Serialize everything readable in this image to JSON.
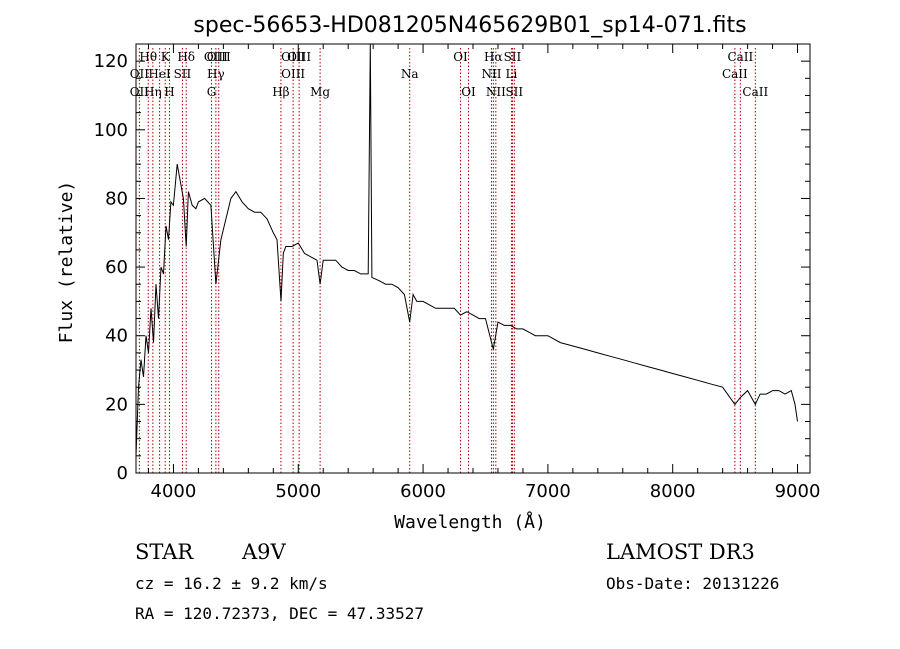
{
  "chart_data": {
    "type": "line",
    "title": "spec-56653-HD081205N465629B01_sp14-071.fits",
    "xlabel": "Wavelength (Å)",
    "ylabel": "Flux (relative)",
    "xlim": [
      3700,
      9100
    ],
    "ylim": [
      0,
      125
    ],
    "xticks": [
      4000,
      5000,
      6000,
      7000,
      8000,
      9000
    ],
    "yticks": [
      0,
      20,
      40,
      60,
      80,
      100,
      120
    ],
    "spectrum": {
      "x": [
        3700,
        3720,
        3740,
        3760,
        3780,
        3800,
        3820,
        3840,
        3860,
        3880,
        3900,
        3920,
        3940,
        3960,
        3980,
        4000,
        4030,
        4060,
        4080,
        4102,
        4120,
        4150,
        4180,
        4200,
        4250,
        4300,
        4340,
        4380,
        4420,
        4460,
        4500,
        4550,
        4600,
        4650,
        4700,
        4750,
        4800,
        4830,
        4862,
        4880,
        4900,
        4950,
        5000,
        5050,
        5100,
        5150,
        5175,
        5200,
        5250,
        5300,
        5350,
        5400,
        5450,
        5500,
        5560,
        5577,
        5590,
        5650,
        5700,
        5750,
        5800,
        5850,
        5893,
        5920,
        5950,
        6000,
        6050,
        6100,
        6150,
        6200,
        6250,
        6300,
        6350,
        6400,
        6450,
        6500,
        6563,
        6600,
        6650,
        6700,
        6750,
        6800,
        6850,
        6900,
        6950,
        7000,
        7100,
        7200,
        7300,
        7400,
        7500,
        7600,
        7700,
        7800,
        7900,
        8000,
        8100,
        8200,
        8300,
        8400,
        8498,
        8542,
        8600,
        8662,
        8700,
        8750,
        8800,
        8850,
        8900,
        8950,
        8980,
        9000
      ],
      "y": [
        5,
        25,
        33,
        28,
        40,
        35,
        48,
        38,
        55,
        45,
        60,
        58,
        72,
        68,
        79,
        78,
        90,
        84,
        80,
        66,
        82,
        78,
        77,
        79,
        80,
        78,
        55,
        68,
        74,
        80,
        82,
        79,
        77,
        76,
        76,
        74,
        70,
        68,
        50,
        64,
        66,
        66,
        67,
        64,
        63,
        62,
        55,
        62,
        62,
        62,
        60,
        59,
        59,
        58,
        58,
        125,
        57,
        56,
        55,
        55,
        54,
        52,
        44,
        52,
        50,
        50,
        49,
        48,
        48,
        48,
        48,
        46,
        47,
        46,
        45,
        45,
        36,
        44,
        43,
        43,
        42,
        42,
        41,
        40,
        40,
        40,
        38,
        37,
        36,
        35,
        34,
        33,
        32,
        31,
        30,
        29,
        28,
        27,
        26,
        25,
        20,
        22,
        24,
        20,
        23,
        23,
        24,
        24,
        23,
        24,
        20,
        15
      ]
    },
    "lines": [
      {
        "name": "OII",
        "wavelength": 3727,
        "row": 2
      },
      {
        "name": "OII",
        "wavelength": 3727,
        "row": 3
      },
      {
        "name": "Hθ",
        "wavelength": 3798,
        "row": 1
      },
      {
        "name": "Hη",
        "wavelength": 3835,
        "row": 3
      },
      {
        "name": "HeI",
        "wavelength": 3889,
        "row": 2
      },
      {
        "name": "K",
        "wavelength": 3934,
        "row": 1
      },
      {
        "name": "H",
        "wavelength": 3968,
        "row": 3
      },
      {
        "name": "SII",
        "wavelength": 4072,
        "row": 2
      },
      {
        "name": "Hδ",
        "wavelength": 4102,
        "row": 1
      },
      {
        "name": "G",
        "wavelength": 4305,
        "row": 3
      },
      {
        "name": "OIII",
        "wavelength": 4340,
        "row": 1
      },
      {
        "name": "Hγ",
        "wavelength": 4340,
        "row": 2
      },
      {
        "name": "OIII",
        "wavelength": 4363,
        "row": 1
      },
      {
        "name": "Hβ",
        "wavelength": 4861,
        "row": 3
      },
      {
        "name": "OIII",
        "wavelength": 4959,
        "row": 1
      },
      {
        "name": "OIII",
        "wavelength": 4959,
        "row": 2
      },
      {
        "name": "OIII",
        "wavelength": 5007,
        "row": 1
      },
      {
        "name": "Mg",
        "wavelength": 5175,
        "row": 3
      },
      {
        "name": "Na",
        "wavelength": 5893,
        "row": 2
      },
      {
        "name": "OI",
        "wavelength": 6300,
        "row": 1
      },
      {
        "name": "OI",
        "wavelength": 6364,
        "row": 3
      },
      {
        "name": "NII",
        "wavelength": 6548,
        "row": 2
      },
      {
        "name": "Hα",
        "wavelength": 6563,
        "row": 1
      },
      {
        "name": "NII",
        "wavelength": 6583,
        "row": 3
      },
      {
        "name": "SII",
        "wavelength": 6716,
        "row": 1
      },
      {
        "name": "Li",
        "wavelength": 6708,
        "row": 2
      },
      {
        "name": "SII",
        "wavelength": 6731,
        "row": 3
      },
      {
        "name": "CaII",
        "wavelength": 8498,
        "row": 2
      },
      {
        "name": "CaII",
        "wavelength": 8542,
        "row": 1
      },
      {
        "name": "CaII",
        "wavelength": 8662,
        "row": 3
      }
    ]
  },
  "info": {
    "class": "STAR",
    "subclass": "A9V",
    "survey": "LAMOST DR3",
    "cz": "cz = 16.2 ± 9.2 km/s",
    "obs_date": "Obs-Date: 20131226",
    "coords": "RA = 120.72373, DEC =  47.33527"
  }
}
